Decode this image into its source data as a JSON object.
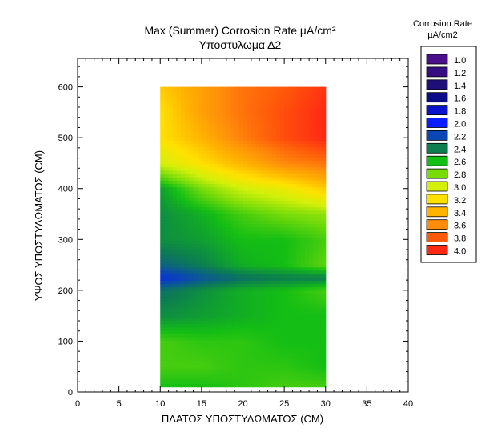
{
  "chart_data": {
    "type": "heatmap",
    "title": "Max (Summer) Corrosion Rate µA/cm²",
    "subtitle": "Υποστυλωμα Δ2",
    "xlabel": "ΠΛΑΤΟΣ ΥΠΟΣΤΥΛΩΜΑΤΟΣ (CM)",
    "ylabel": "ΥΨΟΣ ΥΠΟΣΤΥΛΩΜΑΤΟΣ (CM)",
    "xlim": [
      0,
      40
    ],
    "ylim": [
      0,
      656
    ],
    "xticks": [
      "0",
      "5",
      "10",
      "15",
      "20",
      "25",
      "30",
      "35",
      "40"
    ],
    "yticks": [
      "0",
      "100",
      "200",
      "300",
      "400",
      "500",
      "600"
    ],
    "legend": {
      "title": "Corrosion Rate",
      "units": "µA/cm2",
      "placement": "right",
      "levels": [
        {
          "label": "1.0",
          "value": 1.0,
          "color": "#4b0f8c"
        },
        {
          "label": "1.2",
          "value": 1.2,
          "color": "#360e80"
        },
        {
          "label": "1.4",
          "value": 1.4,
          "color": "#1e0f78"
        },
        {
          "label": "1.6",
          "value": 1.6,
          "color": "#0c0c88"
        },
        {
          "label": "1.8",
          "value": 1.8,
          "color": "#0a14cc"
        },
        {
          "label": "2.0",
          "value": 2.0,
          "color": "#0a1eff"
        },
        {
          "label": "2.2",
          "value": 2.2,
          "color": "#0a46b4"
        },
        {
          "label": "2.4",
          "value": 2.4,
          "color": "#0c7e50"
        },
        {
          "label": "2.6",
          "value": 2.6,
          "color": "#14be14"
        },
        {
          "label": "2.8",
          "value": 2.8,
          "color": "#78dc0a"
        },
        {
          "label": "3.0",
          "value": 3.0,
          "color": "#d2f00a"
        },
        {
          "label": "3.2",
          "value": 3.2,
          "color": "#ffe100"
        },
        {
          "label": "3.4",
          "value": 3.4,
          "color": "#ffb400"
        },
        {
          "label": "3.6",
          "value": 3.6,
          "color": "#ff8c0a"
        },
        {
          "label": "3.8",
          "value": 3.8,
          "color": "#ff5a0a"
        },
        {
          "label": "4.0",
          "value": 4.0,
          "color": "#ff2814"
        }
      ]
    },
    "grid_x": [
      10,
      15,
      20,
      25,
      30
    ],
    "grid_y": [
      10,
      50,
      100,
      150,
      200,
      225,
      250,
      300,
      350,
      400,
      450,
      500,
      550,
      600
    ],
    "z": [
      [
        2.6,
        2.6,
        2.65,
        2.7,
        2.7
      ],
      [
        2.7,
        2.7,
        2.65,
        2.65,
        2.6
      ],
      [
        2.7,
        2.65,
        2.65,
        2.6,
        2.6
      ],
      [
        2.45,
        2.5,
        2.55,
        2.6,
        2.6
      ],
      [
        2.35,
        2.45,
        2.55,
        2.6,
        2.7
      ],
      [
        2.1,
        2.25,
        2.35,
        2.4,
        2.4
      ],
      [
        2.3,
        2.4,
        2.55,
        2.6,
        2.75
      ],
      [
        2.45,
        2.5,
        2.6,
        2.6,
        2.7
      ],
      [
        2.45,
        2.55,
        2.7,
        2.8,
        2.85
      ],
      [
        2.5,
        2.8,
        3.0,
        3.1,
        3.3
      ],
      [
        3.0,
        3.2,
        3.4,
        3.6,
        3.7
      ],
      [
        3.2,
        3.4,
        3.65,
        3.85,
        4.0
      ],
      [
        3.2,
        3.5,
        3.7,
        3.85,
        4.0
      ],
      [
        3.3,
        3.5,
        3.7,
        3.8,
        3.95
      ]
    ]
  }
}
